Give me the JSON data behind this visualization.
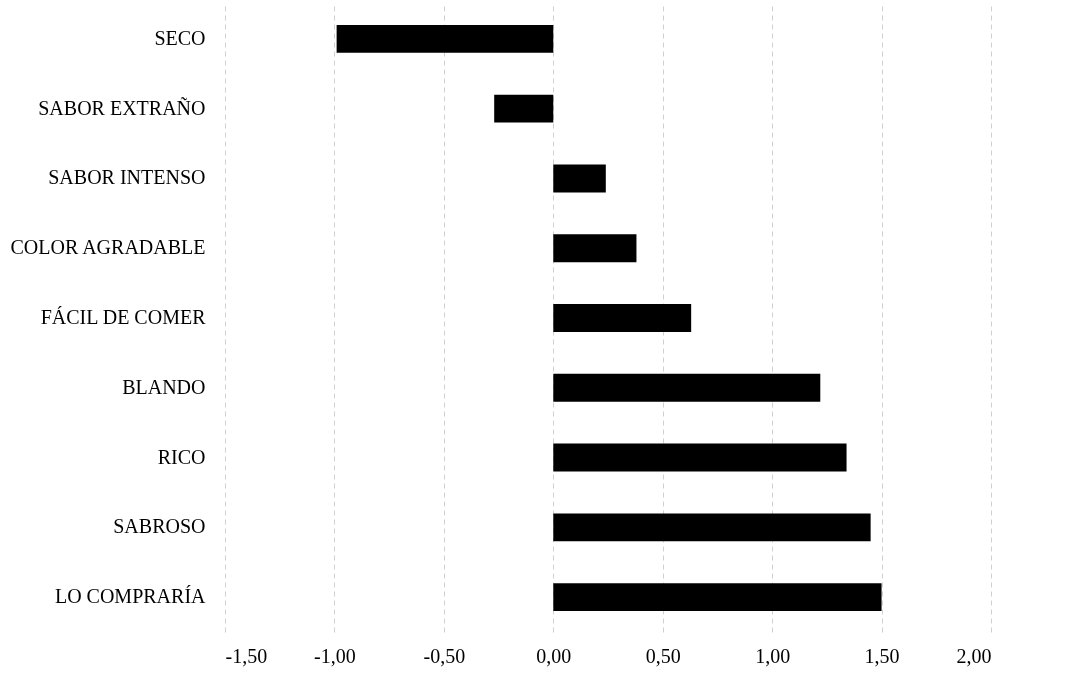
{
  "chart_data": {
    "type": "bar",
    "orientation": "horizontal",
    "categories": [
      "SECO",
      "SABOR EXTRAÑO",
      "SABOR INTENSO",
      "COLOR AGRADABLE",
      "FÁCIL DE COMER",
      "BLANDO",
      "RICO",
      "SABROSO",
      "LO COMPRARÍA"
    ],
    "values": [
      -0.99,
      -0.27,
      0.24,
      0.38,
      0.63,
      1.22,
      1.34,
      1.45,
      1.5
    ],
    "color": "#000000",
    "xlim": [
      -1.5,
      2
    ],
    "xticks": [
      {
        "value": -1.5,
        "label": "-1,50"
      },
      {
        "value": -1,
        "label": "-1,00"
      },
      {
        "value": -0.5,
        "label": "-0,50"
      },
      {
        "value": 0,
        "label": "0,00"
      },
      {
        "value": 0.5,
        "label": "0,50"
      },
      {
        "value": 1,
        "label": "1,00"
      },
      {
        "value": 1.5,
        "label": "1,50"
      },
      {
        "value": 2,
        "label": "2,00"
      }
    ],
    "grid": "x"
  }
}
